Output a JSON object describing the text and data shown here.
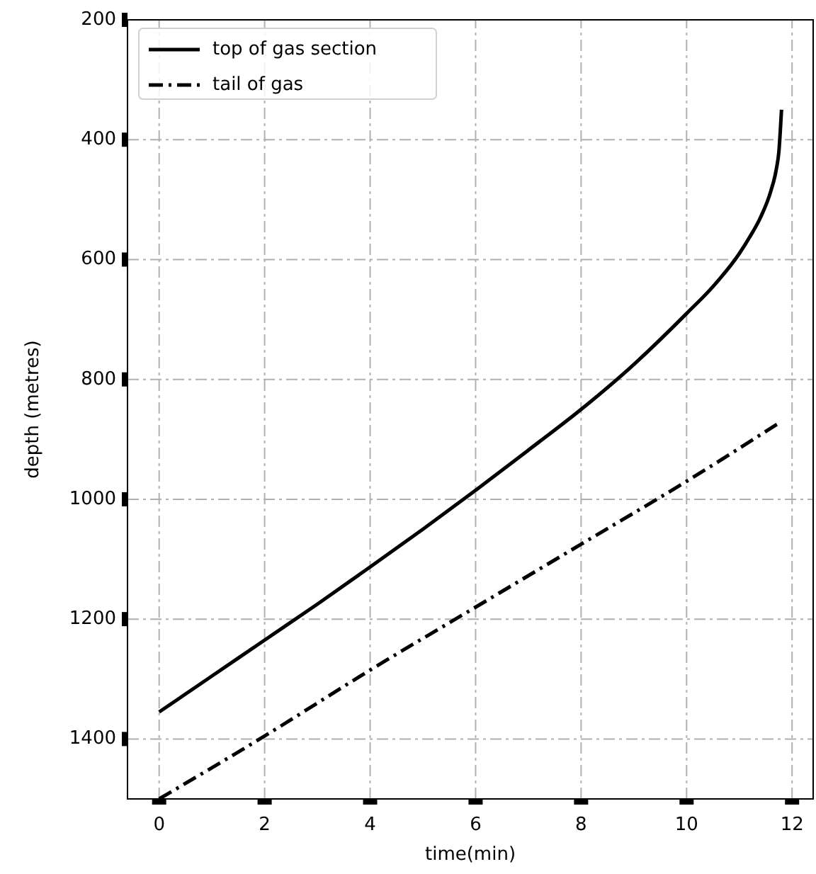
{
  "chart_data": {
    "type": "line",
    "xlabel": "time(min)",
    "ylabel": "depth (metres)",
    "xlim": [
      -0.6,
      12.4
    ],
    "ylim": [
      1500,
      200
    ],
    "xticks": [
      0,
      2,
      4,
      6,
      8,
      10,
      12
    ],
    "yticks": [
      200,
      400,
      600,
      800,
      1000,
      1200,
      1400
    ],
    "grid": true,
    "legend": "top left",
    "series": [
      {
        "name": "top of gas section",
        "color": "#000000",
        "line_style": "solid",
        "x": [
          0,
          1,
          2,
          3,
          4,
          5,
          6,
          7,
          8,
          9,
          10,
          10.5,
          11,
          11.2,
          11.4,
          11.6,
          11.7,
          11.75,
          11.8
        ],
        "values": [
          1355,
          1295,
          1235,
          1175,
          1113,
          1050,
          985,
          918,
          850,
          775,
          690,
          645,
          590,
          562,
          530,
          485,
          450,
          420,
          350
        ]
      },
      {
        "name": "tail of gas",
        "color": "#000000",
        "line_style": "dashdot",
        "x": [
          0,
          2,
          4,
          6,
          8,
          10,
          11.8
        ],
        "values": [
          1500,
          1395,
          1285,
          1180,
          1075,
          970,
          870
        ]
      }
    ]
  }
}
